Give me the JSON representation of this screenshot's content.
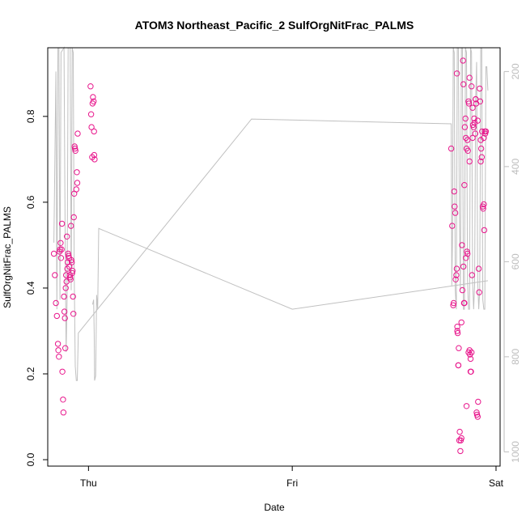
{
  "chart_data": {
    "type": "scatter",
    "title": "ATOM3 Northeast_Pacific_2 SulfOrgNitFrac_PALMS",
    "xlabel": "Date",
    "ylabel": "SulfOrgNitFrac_PALMS",
    "x_ticks": [
      {
        "label": "Thu",
        "value": 0
      },
      {
        "label": "Fri",
        "value": 1
      },
      {
        "label": "Sat",
        "value": 2
      }
    ],
    "xlim": [
      -0.2,
      2.02
    ],
    "ylim": [
      -0.015,
      0.96
    ],
    "y_ticks": [
      0.0,
      0.2,
      0.4,
      0.6,
      0.8
    ],
    "y_tick_labels": [
      "0.0",
      "0.2",
      "0.4",
      "0.6",
      "0.8"
    ],
    "y2_ticks": [
      200,
      400,
      600,
      800,
      1000
    ],
    "y2_tick_labels": [
      "200",
      "400",
      "600",
      "800",
      "1000"
    ],
    "y2_range_reversed": [
      1030,
      150
    ],
    "grid": false,
    "colors": {
      "points": "#e8168c",
      "line": "#c0c0c0",
      "frame": "#000000",
      "right_axis": "#bdbdbd"
    },
    "series": [
      {
        "values": [
          [
            -0.17,
            0.48
          ],
          [
            -0.165,
            0.43
          ],
          [
            -0.16,
            0.365
          ],
          [
            -0.155,
            0.335
          ],
          [
            -0.15,
            0.27
          ],
          [
            -0.148,
            0.255
          ],
          [
            -0.145,
            0.24
          ],
          [
            -0.142,
            0.485
          ],
          [
            -0.14,
            0.49
          ],
          [
            -0.137,
            0.505
          ],
          [
            -0.135,
            0.47
          ],
          [
            -0.132,
            0.49
          ],
          [
            -0.13,
            0.55
          ],
          [
            -0.128,
            0.205
          ],
          [
            -0.125,
            0.14
          ],
          [
            -0.123,
            0.11
          ],
          [
            -0.12,
            0.38
          ],
          [
            -0.118,
            0.345
          ],
          [
            -0.116,
            0.33
          ],
          [
            -0.114,
            0.26
          ],
          [
            -0.112,
            0.4
          ],
          [
            -0.11,
            0.43
          ],
          [
            -0.108,
            0.415
          ],
          [
            -0.106,
            0.52
          ],
          [
            -0.104,
            0.445
          ],
          [
            -0.102,
            0.46
          ],
          [
            -0.1,
            0.48
          ],
          [
            -0.098,
            0.475
          ],
          [
            -0.096,
            0.47
          ],
          [
            -0.094,
            0.45
          ],
          [
            -0.092,
            0.43
          ],
          [
            -0.09,
            0.425
          ],
          [
            -0.088,
            0.42
          ],
          [
            -0.086,
            0.545
          ],
          [
            -0.084,
            0.465
          ],
          [
            -0.082,
            0.46
          ],
          [
            -0.08,
            0.435
          ],
          [
            -0.078,
            0.44
          ],
          [
            -0.076,
            0.38
          ],
          [
            -0.074,
            0.34
          ],
          [
            -0.072,
            0.565
          ],
          [
            -0.07,
            0.62
          ],
          [
            -0.068,
            0.73
          ],
          [
            -0.066,
            0.725
          ],
          [
            -0.064,
            0.72
          ],
          [
            -0.06,
            0.63
          ],
          [
            -0.057,
            0.67
          ],
          [
            -0.055,
            0.645
          ],
          [
            -0.053,
            0.76
          ],
          [
            0.01,
            0.87
          ],
          [
            0.013,
            0.805
          ],
          [
            0.015,
            0.775
          ],
          [
            0.018,
            0.705
          ],
          [
            0.02,
            0.83
          ],
          [
            0.022,
            0.845
          ],
          [
            0.025,
            0.835
          ],
          [
            0.027,
            0.765
          ],
          [
            0.028,
            0.71
          ],
          [
            0.03,
            0.7
          ],
          [
            1.78,
            0.725
          ],
          [
            1.785,
            0.545
          ],
          [
            1.79,
            0.36
          ],
          [
            1.792,
            0.365
          ],
          [
            1.795,
            0.625
          ],
          [
            1.797,
            0.59
          ],
          [
            1.8,
            0.575
          ],
          [
            1.802,
            0.42
          ],
          [
            1.805,
            0.43
          ],
          [
            1.807,
            0.445
          ],
          [
            1.81,
            0.31
          ],
          [
            1.812,
            0.295
          ],
          [
            1.815,
            0.22
          ],
          [
            1.817,
            0.26
          ],
          [
            1.82,
            0.045
          ],
          [
            1.822,
            0.065
          ],
          [
            1.825,
            0.02
          ],
          [
            1.827,
            0.045
          ],
          [
            1.83,
            0.05
          ],
          [
            1.833,
            0.5
          ],
          [
            1.835,
            0.395
          ],
          [
            1.838,
            0.93
          ],
          [
            1.84,
            0.875
          ],
          [
            1.843,
            0.365
          ],
          [
            1.845,
            0.64
          ],
          [
            1.847,
            0.775
          ],
          [
            1.85,
            0.795
          ],
          [
            1.852,
            0.75
          ],
          [
            1.855,
            0.725
          ],
          [
            1.857,
            0.485
          ],
          [
            1.86,
            0.48
          ],
          [
            1.862,
            0.72
          ],
          [
            1.865,
            0.835
          ],
          [
            1.867,
            0.83
          ],
          [
            1.87,
            0.255
          ],
          [
            1.872,
            0.245
          ],
          [
            1.875,
            0.235
          ],
          [
            1.877,
            0.205
          ],
          [
            1.88,
            0.25
          ],
          [
            1.882,
            0.43
          ],
          [
            1.885,
            0.82
          ],
          [
            1.887,
            0.78
          ],
          [
            1.89,
            0.775
          ],
          [
            1.893,
            0.795
          ],
          [
            1.895,
            0.785
          ],
          [
            1.898,
            0.76
          ],
          [
            1.9,
            0.84
          ],
          [
            1.903,
            0.83
          ],
          [
            1.905,
            0.11
          ],
          [
            1.907,
            0.105
          ],
          [
            1.91,
            0.1
          ],
          [
            1.912,
            0.135
          ],
          [
            1.915,
            0.445
          ],
          [
            1.917,
            0.39
          ],
          [
            1.92,
            0.865
          ],
          [
            1.922,
            0.835
          ],
          [
            1.925,
            0.745
          ],
          [
            1.927,
            0.725
          ],
          [
            1.93,
            0.705
          ],
          [
            1.932,
            0.765
          ],
          [
            1.935,
            0.59
          ],
          [
            1.937,
            0.585
          ],
          [
            1.94,
            0.595
          ],
          [
            1.942,
            0.535
          ],
          [
            1.945,
            0.765
          ],
          [
            1.947,
            0.76
          ],
          [
            1.95,
            0.765
          ],
          [
            1.81,
            0.3
          ],
          [
            1.83,
            0.32
          ],
          [
            1.855,
            0.125
          ],
          [
            1.87,
            0.89
          ],
          [
            1.88,
            0.87
          ],
          [
            1.865,
            0.25
          ],
          [
            1.875,
            0.205
          ],
          [
            1.86,
            0.745
          ],
          [
            1.815,
            0.22
          ],
          [
            1.84,
            0.45
          ],
          [
            1.87,
            0.695
          ],
          [
            1.852,
            0.47
          ],
          [
            1.885,
            0.75
          ],
          [
            1.9,
            0.84
          ],
          [
            1.91,
            0.79
          ],
          [
            1.925,
            0.695
          ],
          [
            1.94,
            0.75
          ],
          [
            1.845,
            0.365
          ],
          [
            1.808,
            0.9
          ]
        ]
      }
    ],
    "altitude_trace_y2": [
      [
        -0.17,
        560
      ],
      [
        -0.16,
        200
      ],
      [
        -0.155,
        700
      ],
      [
        -0.15,
        150
      ],
      [
        -0.145,
        150
      ],
      [
        -0.14,
        680
      ],
      [
        -0.135,
        160
      ],
      [
        -0.12,
        150
      ],
      [
        -0.115,
        520
      ],
      [
        -0.11,
        790
      ],
      [
        -0.105,
        680
      ],
      [
        -0.1,
        150
      ],
      [
        -0.09,
        150
      ],
      [
        -0.085,
        660
      ],
      [
        -0.08,
        150
      ],
      [
        -0.075,
        160
      ],
      [
        -0.07,
        620
      ],
      [
        -0.065,
        820
      ],
      [
        -0.06,
        850
      ],
      [
        -0.055,
        850
      ],
      [
        -0.05,
        750
      ],
      [
        0.8,
        300
      ],
      [
        1.78,
        310
      ],
      [
        1.783,
        650
      ],
      [
        1.786,
        560
      ],
      [
        1.79,
        150
      ],
      [
        1.795,
        160
      ],
      [
        1.8,
        660
      ],
      [
        1.805,
        700
      ],
      [
        1.81,
        150
      ],
      [
        1.815,
        150
      ],
      [
        1.82,
        480
      ],
      [
        1.825,
        660
      ],
      [
        1.83,
        150
      ],
      [
        1.835,
        150
      ],
      [
        1.84,
        700
      ],
      [
        1.845,
        700
      ],
      [
        1.85,
        150
      ],
      [
        1.855,
        160
      ],
      [
        1.86,
        640
      ],
      [
        1.865,
        700
      ],
      [
        1.87,
        700
      ],
      [
        1.875,
        150
      ],
      [
        1.88,
        160
      ],
      [
        1.885,
        640
      ],
      [
        1.89,
        700
      ],
      [
        1.895,
        650
      ],
      [
        1.9,
        260
      ],
      [
        1.905,
        180
      ],
      [
        1.91,
        640
      ],
      [
        1.915,
        700
      ],
      [
        1.92,
        660
      ],
      [
        1.925,
        150
      ],
      [
        1.93,
        150
      ],
      [
        1.935,
        680
      ],
      [
        1.94,
        700
      ],
      [
        1.945,
        700
      ],
      [
        1.95,
        190
      ],
      [
        1.955,
        190
      ],
      [
        1.96,
        240
      ]
    ],
    "altitude_trace_y2_b": [
      [
        0.02,
        690
      ],
      [
        0.025,
        680
      ],
      [
        0.028,
        750
      ],
      [
        0.03,
        850
      ],
      [
        0.035,
        840
      ],
      [
        0.04,
        670
      ],
      [
        0.045,
        700
      ],
      [
        0.05,
        530
      ],
      [
        1.0,
        700
      ],
      [
        1.96,
        640
      ]
    ]
  }
}
